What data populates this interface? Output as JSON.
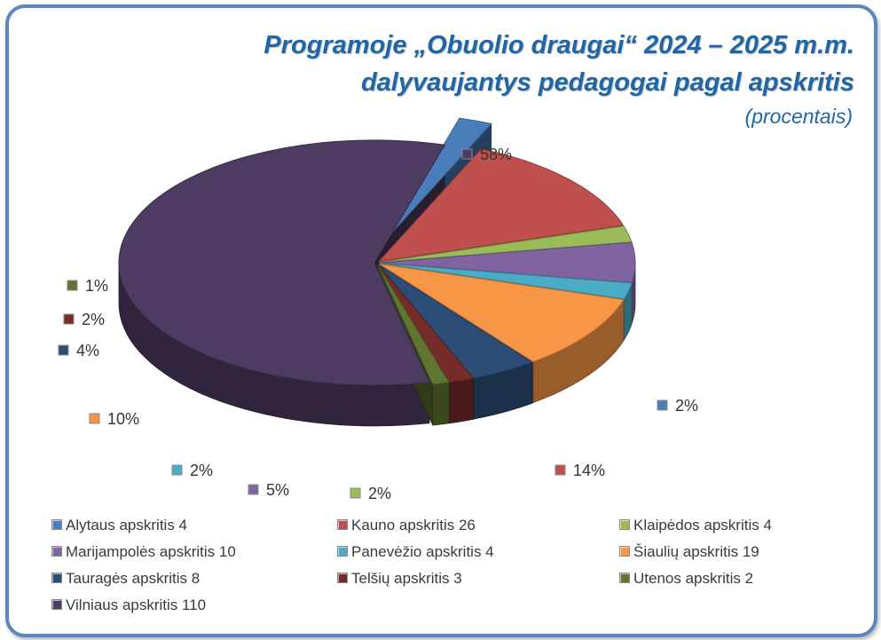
{
  "title_line1": "Programoje „Obuolio draugai“  2024 – 2025 m.m.",
  "title_line2": "dalyvaujantys pedagogai pagal apskritis",
  "subtitle": "(procentais)",
  "chart_data": {
    "type": "pie",
    "style": "3d-exploded",
    "categories": [
      "Alytaus apskritis",
      "Kauno apskritis",
      "Klaipėdos apskritis",
      "Marijampolės apskritis",
      "Panevėžio apskritis",
      "Šiaulių apskritis",
      "Tauragės apskritis",
      "Telšių apskritis",
      "Utenos apskritis",
      "Vilniaus apskritis"
    ],
    "values": [
      4,
      26,
      4,
      10,
      4,
      19,
      8,
      3,
      2,
      110
    ],
    "percent_labels": [
      "2%",
      "14%",
      "2%",
      "5%",
      "2%",
      "10%",
      "4%",
      "2%",
      "1%",
      "58%"
    ],
    "legend_labels": [
      "Alytaus apskritis  4",
      "Kauno apskritis 26",
      "Klaipėdos apskritis  4",
      "Marijampolės apskritis  10",
      "Panevėžio apskritis  4",
      "Šiaulių apskritis  19",
      "Tauragės apskritis  8",
      "Telšių apskritis  3",
      "Utenos apskritis 2",
      "Vilniaus apskritis 110"
    ],
    "colors": [
      "#4a7ebb",
      "#c0504d",
      "#9bbb59",
      "#8064a2",
      "#4bacc6",
      "#f79646",
      "#2c4d75",
      "#772c2a",
      "#5f7530",
      "#4d3b62"
    ],
    "legend_position": "bottom"
  }
}
